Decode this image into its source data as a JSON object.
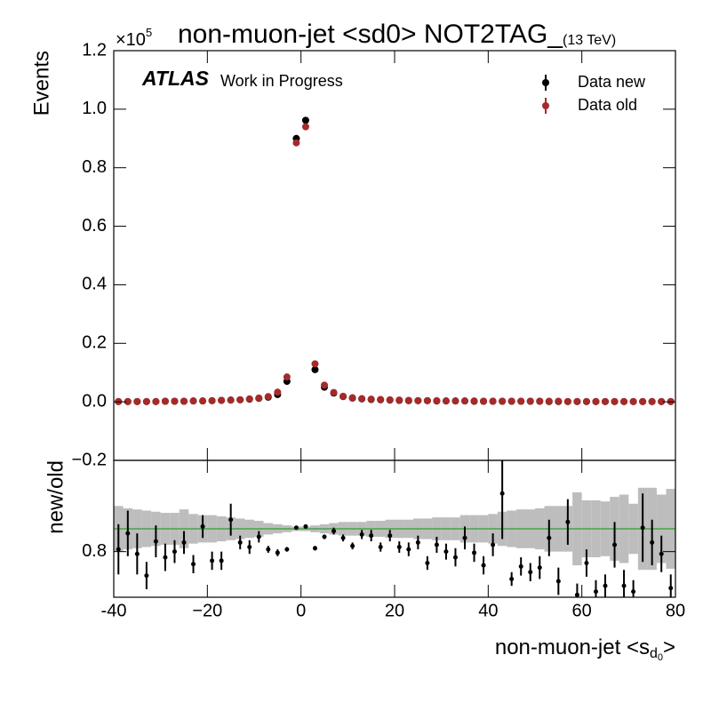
{
  "chart_data": [
    {
      "type": "scatter",
      "title": "non-muon-jet <sd0> NOT2TAG_",
      "subtitle": "(13 TeV)",
      "scale_label": "×10",
      "scale_exponent": "5",
      "ylabel": "Events",
      "experiment": "ATLAS",
      "status": "Work in Progress",
      "legend": "upper right",
      "x": [
        -39,
        -37,
        -35,
        -33,
        -31,
        -29,
        -27,
        -25,
        -23,
        -21,
        -19,
        -17,
        -15,
        -13,
        -11,
        -9,
        -7,
        -5,
        -3,
        -1,
        1,
        3,
        5,
        7,
        9,
        11,
        13,
        15,
        17,
        19,
        21,
        23,
        25,
        27,
        29,
        31,
        33,
        35,
        37,
        39,
        41,
        43,
        45,
        47,
        49,
        51,
        53,
        55,
        57,
        59,
        61,
        63,
        65,
        67,
        69,
        71,
        73,
        75,
        77,
        79
      ],
      "series": [
        {
          "name": "Data new",
          "color": "#000000",
          "values": [
            0.001,
            0.001,
            0.001,
            0.001,
            0.001,
            0.002,
            0.002,
            0.002,
            0.003,
            0.003,
            0.004,
            0.005,
            0.006,
            0.007,
            0.009,
            0.012,
            0.016,
            0.025,
            0.07,
            0.9,
            0.962,
            0.11,
            0.05,
            0.03,
            0.018,
            0.013,
            0.01,
            0.008,
            0.007,
            0.006,
            0.005,
            0.004,
            0.004,
            0.004,
            0.003,
            0.003,
            0.003,
            0.003,
            0.002,
            0.002,
            0.002,
            0.002,
            0.002,
            0.002,
            0.002,
            0.002,
            0.001,
            0.001,
            0.001,
            0.001,
            0.001,
            0.001,
            0.001,
            0.001,
            0.001,
            0.001,
            0.001,
            0.001,
            0.001,
            0.001
          ]
        },
        {
          "name": "Data old",
          "color": "#a52a2a",
          "values": [
            0.001,
            0.001,
            0.001,
            0.001,
            0.001,
            0.002,
            0.002,
            0.002,
            0.003,
            0.003,
            0.004,
            0.005,
            0.006,
            0.007,
            0.01,
            0.013,
            0.018,
            0.033,
            0.085,
            0.885,
            0.94,
            0.13,
            0.057,
            0.032,
            0.019,
            0.014,
            0.011,
            0.009,
            0.008,
            0.007,
            0.006,
            0.005,
            0.004,
            0.004,
            0.004,
            0.003,
            0.003,
            0.003,
            0.003,
            0.002,
            0.002,
            0.002,
            0.002,
            0.002,
            0.002,
            0.002,
            0.002,
            0.002,
            0.001,
            0.001,
            0.001,
            0.001,
            0.001,
            0.001,
            0.001,
            0.001,
            0.001,
            0.001,
            0.001,
            0.001
          ]
        }
      ],
      "xlim": [
        -40,
        80
      ],
      "ylim": [
        -0.2,
        1.2
      ],
      "yticks": [
        {
          "value": -0.2,
          "label": "−0.2"
        },
        {
          "value": 0,
          "label": "0.0"
        },
        0.2,
        0.4,
        0.6,
        0.8,
        {
          "value": 1,
          "label": "1.0"
        },
        1.2
      ]
    },
    {
      "type": "errorbar",
      "ylabel": "new/old",
      "xlabel": "non-muon-jet <s",
      "xlabel_sub": "d",
      "xlabel_subsub": "0",
      "xlabel_end": ">",
      "color": "#000000",
      "band_color": "#bdbdbd",
      "reference_line": 1,
      "reference_color": "#2ca02c",
      "x": [
        -39,
        -37,
        -35,
        -33,
        -31,
        -29,
        -27,
        -25,
        -23,
        -21,
        -19,
        -17,
        -15,
        -13,
        -11,
        -9,
        -7,
        -5,
        -3,
        -1,
        1,
        3,
        5,
        7,
        9,
        11,
        13,
        15,
        17,
        19,
        21,
        23,
        25,
        27,
        29,
        31,
        33,
        35,
        37,
        39,
        41,
        43,
        45,
        47,
        49,
        51,
        53,
        55,
        57,
        59,
        61,
        63,
        65,
        67,
        69,
        71,
        73,
        75,
        77,
        79
      ],
      "values": [
        0.82,
        0.96,
        0.78,
        0.59,
        0.89,
        0.75,
        0.8,
        0.88,
        0.69,
        1.02,
        0.72,
        0.72,
        1.08,
        0.88,
        0.84,
        0.93,
        0.82,
        0.79,
        0.82,
        1.01,
        1.02,
        0.83,
        0.93,
        0.98,
        0.92,
        0.85,
        0.95,
        0.94,
        0.84,
        0.94,
        0.84,
        0.82,
        0.88,
        0.7,
        0.86,
        0.8,
        0.75,
        0.92,
        0.79,
        0.68,
        0.86,
        1.31,
        0.56,
        0.67,
        0.62,
        0.66,
        0.92,
        0.54,
        1.06,
        0.42,
        0.7,
        0.45,
        0.5,
        0.86,
        0.5,
        0.45,
        1.01,
        0.88,
        0.78,
        0.48
      ],
      "errors": [
        0.22,
        0.2,
        0.18,
        0.12,
        0.14,
        0.12,
        0.1,
        0.1,
        0.08,
        0.1,
        0.08,
        0.08,
        0.14,
        0.06,
        0.06,
        0.05,
        0.03,
        0.03,
        0.02,
        0.01,
        0.01,
        0.02,
        0.02,
        0.03,
        0.03,
        0.03,
        0.04,
        0.05,
        0.04,
        0.05,
        0.05,
        0.06,
        0.06,
        0.06,
        0.07,
        0.07,
        0.08,
        0.1,
        0.08,
        0.08,
        0.1,
        0.4,
        0.06,
        0.08,
        0.08,
        0.1,
        0.16,
        0.12,
        0.2,
        0.1,
        0.12,
        0.1,
        0.1,
        0.2,
        0.14,
        0.1,
        0.3,
        0.2,
        0.16,
        0.12
      ],
      "band": [
        0.2,
        0.18,
        0.17,
        0.16,
        0.15,
        0.14,
        0.14,
        0.17,
        0.13,
        0.12,
        0.12,
        0.11,
        0.1,
        0.09,
        0.08,
        0.07,
        0.05,
        0.04,
        0.03,
        0.02,
        0.02,
        0.03,
        0.04,
        0.05,
        0.06,
        0.06,
        0.06,
        0.07,
        0.07,
        0.08,
        0.08,
        0.08,
        0.09,
        0.09,
        0.1,
        0.1,
        0.1,
        0.12,
        0.12,
        0.12,
        0.13,
        0.15,
        0.16,
        0.17,
        0.17,
        0.18,
        0.2,
        0.2,
        0.2,
        0.32,
        0.25,
        0.25,
        0.24,
        0.28,
        0.3,
        0.22,
        0.36,
        0.36,
        0.3,
        0.35
      ],
      "xlim": [
        -40,
        80
      ],
      "ylim": [
        0.4,
        1.6
      ],
      "yticks": [
        0.8
      ],
      "xticks": [
        -40,
        {
          "value": -20,
          "label": "−20"
        },
        0,
        20,
        40,
        60,
        80
      ]
    }
  ]
}
